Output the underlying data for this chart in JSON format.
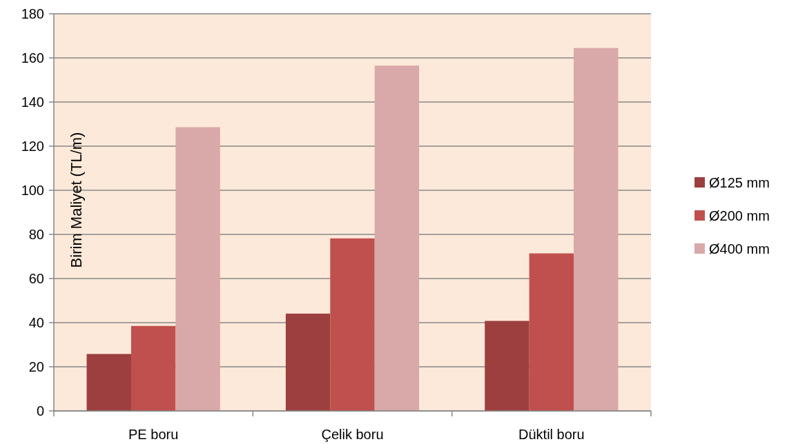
{
  "chart_data": {
    "type": "bar",
    "ylabel": "Birim Maliyet (TL/m)",
    "categories": [
      "PE boru",
      "Çelik boru",
      "Düktil boru"
    ],
    "series": [
      {
        "name": "Ø125 mm",
        "color": "#9c3f3e",
        "values": [
          25.8,
          44.1,
          40.8
        ]
      },
      {
        "name": "Ø200 mm",
        "color": "#c0504d",
        "values": [
          38.5,
          78.2,
          71.4
        ]
      },
      {
        "name": "Ø400 mm",
        "color": "#d9a8a8",
        "values": [
          128.6,
          156.5,
          164.5
        ]
      }
    ],
    "ylim": [
      0,
      180
    ],
    "yticks": [
      0,
      20,
      40,
      60,
      80,
      100,
      120,
      140,
      160,
      180
    ],
    "grid": "y",
    "legend": "right"
  }
}
